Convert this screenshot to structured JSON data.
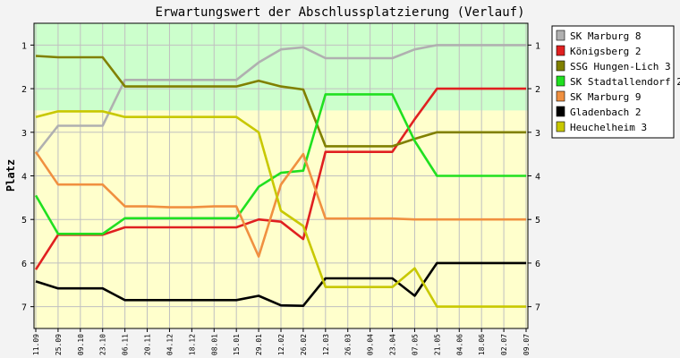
{
  "chart_data": {
    "type": "line",
    "title": "Erwartungswert der Abschlussplatzierung (Verlauf)",
    "xlabel": "",
    "ylabel": "Platz",
    "y_inverted": true,
    "ylim": [
      0.5,
      7.5
    ],
    "yticks": [
      "1",
      "2",
      "3",
      "4",
      "5",
      "6",
      "7"
    ],
    "grid": true,
    "legend_position": "right",
    "zones": [
      {
        "from": 0.5,
        "to": 2.5,
        "color": "#ccffcc"
      },
      {
        "from": 2.5,
        "to": 7.5,
        "color": "#ffffcc"
      }
    ],
    "x": [
      "11.09",
      "25.09",
      "09.10",
      "23.10",
      "06.11",
      "20.11",
      "04.12",
      "18.12",
      "08.01",
      "15.01",
      "29.01",
      "12.02",
      "26.02",
      "12.03",
      "26.03",
      "09.04",
      "23.04",
      "07.05",
      "21.05",
      "04.06",
      "18.06",
      "02.07",
      "09.07"
    ],
    "series": [
      {
        "name": "SK Marburg 8",
        "color": "#b0b0b0",
        "values": [
          3.5,
          2.85,
          2.85,
          2.85,
          1.8,
          1.8,
          1.8,
          1.8,
          1.8,
          1.8,
          1.4,
          1.1,
          1.05,
          1.3,
          1.3,
          1.3,
          1.3,
          1.1,
          1.0,
          1.0,
          1.0,
          1.0,
          1.0
        ]
      },
      {
        "name": "Königsberg 2",
        "color": "#e02020",
        "values": [
          6.15,
          5.35,
          5.35,
          5.35,
          5.18,
          5.18,
          5.18,
          5.18,
          5.18,
          5.18,
          5.0,
          5.05,
          5.45,
          3.45,
          3.45,
          3.45,
          3.45,
          2.7,
          2.0,
          2.0,
          2.0,
          2.0,
          2.0
        ]
      },
      {
        "name": "SSG Hungen-Lich 3",
        "color": "#808000",
        "values": [
          1.25,
          1.28,
          1.28,
          1.28,
          1.95,
          1.95,
          1.95,
          1.95,
          1.95,
          1.95,
          1.82,
          1.95,
          2.02,
          3.32,
          3.32,
          3.32,
          3.32,
          3.15,
          3.0,
          3.0,
          3.0,
          3.0,
          3.0
        ]
      },
      {
        "name": "SK Stadtallendorf 2",
        "color": "#20e020",
        "values": [
          4.45,
          5.33,
          5.33,
          5.33,
          4.97,
          4.97,
          4.97,
          4.97,
          4.97,
          4.97,
          4.25,
          3.93,
          3.88,
          2.13,
          2.13,
          2.13,
          2.13,
          3.2,
          4.0,
          4.0,
          4.0,
          4.0,
          4.0
        ]
      },
      {
        "name": "SK Marburg 9",
        "color": "#f09040",
        "values": [
          3.45,
          4.2,
          4.2,
          4.2,
          4.7,
          4.7,
          4.72,
          4.72,
          4.7,
          4.7,
          5.85,
          4.2,
          3.5,
          4.98,
          4.98,
          4.98,
          4.98,
          5.0,
          5.0,
          5.0,
          5.0,
          5.0,
          5.0
        ]
      },
      {
        "name": "Gladenbach 2",
        "color": "#000000",
        "values": [
          6.42,
          6.58,
          6.58,
          6.58,
          6.85,
          6.85,
          6.85,
          6.85,
          6.85,
          6.85,
          6.75,
          6.97,
          6.98,
          6.35,
          6.35,
          6.35,
          6.35,
          6.75,
          6.0,
          6.0,
          6.0,
          6.0,
          6.0
        ]
      },
      {
        "name": "Heuchelheim 3",
        "color": "#c8c800",
        "values": [
          2.65,
          2.52,
          2.52,
          2.52,
          2.65,
          2.65,
          2.65,
          2.65,
          2.65,
          2.65,
          3.0,
          4.8,
          5.15,
          6.55,
          6.55,
          6.55,
          6.55,
          6.12,
          7.0,
          7.0,
          7.0,
          7.0,
          7.0
        ]
      }
    ]
  }
}
